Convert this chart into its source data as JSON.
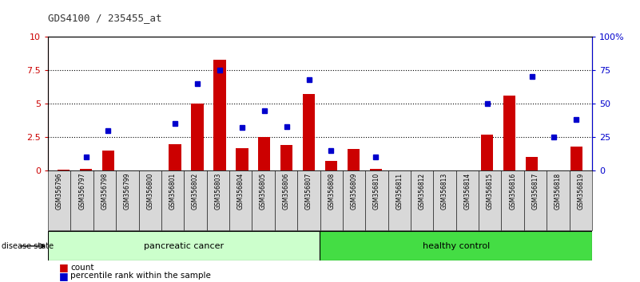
{
  "title": "GDS4100 / 235455_at",
  "samples": [
    "GSM356796",
    "GSM356797",
    "GSM356798",
    "GSM356799",
    "GSM356800",
    "GSM356801",
    "GSM356802",
    "GSM356803",
    "GSM356804",
    "GSM356805",
    "GSM356806",
    "GSM356807",
    "GSM356808",
    "GSM356809",
    "GSM356810",
    "GSM356811",
    "GSM356812",
    "GSM356813",
    "GSM356814",
    "GSM356815",
    "GSM356816",
    "GSM356817",
    "GSM356818",
    "GSM356819"
  ],
  "counts": [
    0.05,
    0.1,
    1.5,
    0.0,
    0.0,
    2.0,
    5.0,
    8.3,
    1.7,
    2.5,
    1.9,
    5.7,
    0.7,
    1.6,
    0.1,
    0.0,
    0.0,
    0.0,
    0.0,
    2.7,
    5.6,
    1.0,
    0.0,
    1.8
  ],
  "percentiles": [
    null,
    10,
    30,
    null,
    null,
    35,
    65,
    75,
    32,
    45,
    33,
    68,
    15,
    null,
    10,
    null,
    null,
    null,
    null,
    50,
    null,
    70,
    25,
    38
  ],
  "pancreatic_cancer_count": 12,
  "healthy_control_count": 12,
  "ylim_left": [
    0,
    10
  ],
  "ylim_right": [
    0,
    100
  ],
  "yticks_left": [
    0,
    2.5,
    5,
    7.5,
    10
  ],
  "yticks_right": [
    0,
    25,
    50,
    75,
    100
  ],
  "bar_color": "#cc0000",
  "scatter_color": "#0000cc",
  "pancreatic_bg": "#ccffcc",
  "healthy_bg": "#44dd44",
  "label_bg": "#d8d8d8",
  "title_color": "#333333",
  "left_axis_color": "#cc0000",
  "right_axis_color": "#0000cc"
}
